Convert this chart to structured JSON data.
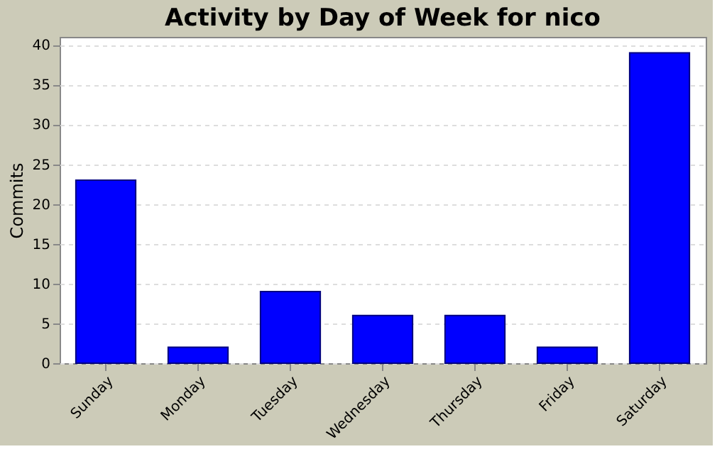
{
  "chart_data": {
    "type": "bar",
    "title": "Activity by Day of Week for nico",
    "ylabel": "Commits",
    "categories": [
      "Sunday",
      "Monday",
      "Tuesday",
      "Wednesday",
      "Thursday",
      "Friday",
      "Saturday"
    ],
    "values": [
      23,
      2,
      9,
      6,
      6,
      2,
      39
    ],
    "color": "#0000ff",
    "ylim": [
      0,
      41
    ],
    "yticks": [
      0,
      5,
      10,
      15,
      20,
      25,
      30,
      35,
      40
    ],
    "grid": "y"
  }
}
